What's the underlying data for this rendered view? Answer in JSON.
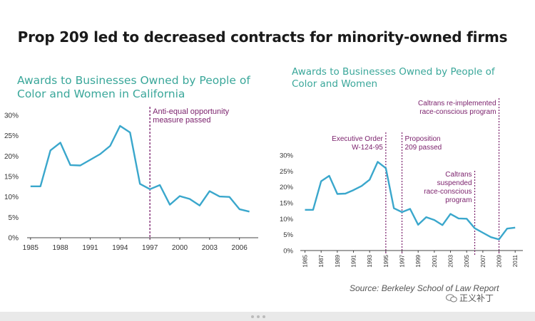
{
  "page_title": "Prop 209 led to decreased contracts for minority-owned firms",
  "colors": {
    "line": "#3aa7cc",
    "annotation": "#7a1f6b",
    "title": "#3aa79a"
  },
  "chart_data": [
    {
      "type": "line",
      "title": "Awards to Businesses Owned by People of Color and Women in California",
      "xlabel": "",
      "ylabel": "",
      "x_ticks": [
        "1985",
        "1988",
        "1991",
        "1994",
        "1997",
        "2000",
        "2003",
        "2006"
      ],
      "y_ticks": [
        "0%",
        "5%",
        "10%",
        "15%",
        "20%",
        "25%",
        "30%"
      ],
      "xlim": [
        1984.8,
        2007.6
      ],
      "ylim": [
        0,
        30
      ],
      "series": [
        {
          "x": [
            1985,
            1986,
            1987,
            1988,
            1989,
            1990,
            1991,
            1992,
            1993,
            1994,
            1995,
            1996,
            1997,
            1998,
            1999,
            2000,
            2001,
            2002,
            2003,
            2004,
            2005,
            2006,
            2007
          ],
          "values": [
            12.6,
            12.6,
            21.4,
            23.3,
            17.8,
            17.7,
            19.1,
            20.5,
            22.5,
            27.4,
            25.8,
            13.2,
            11.9,
            12.9,
            8.1,
            10.2,
            9.5,
            7.9,
            11.4,
            10.1,
            10.0,
            7.0,
            6.4
          ]
        }
      ],
      "annotations": [
        {
          "x": 1997,
          "label_lines": [
            "Anti-equal opportunity",
            "measure passed"
          ]
        }
      ],
      "grid": false,
      "legend": "none"
    },
    {
      "type": "line",
      "title": "Awards to Businesses Owned by People of Color and Women",
      "xlabel": "",
      "ylabel": "",
      "x_ticks": [
        "1985",
        "1987",
        "1989",
        "1991",
        "1993",
        "1995",
        "1997",
        "1999",
        "2001",
        "2003",
        "2005",
        "2007",
        "2009",
        "2011"
      ],
      "y_ticks": [
        "0%",
        "5%",
        "10%",
        "15%",
        "20%",
        "25%",
        "30%"
      ],
      "xlim": [
        1984.6,
        2011.6
      ],
      "ylim": [
        0,
        30
      ],
      "series": [
        {
          "x": [
            1985,
            1986,
            1987,
            1988,
            1989,
            1990,
            1991,
            1992,
            1993,
            1994,
            1995,
            1996,
            1997,
            1998,
            1999,
            2000,
            2001,
            2002,
            2003,
            2004,
            2005,
            2006,
            2007,
            2008,
            2009,
            2010,
            2011
          ],
          "values": [
            12.8,
            12.8,
            21.8,
            23.5,
            17.8,
            17.9,
            19.0,
            20.3,
            22.3,
            27.9,
            25.9,
            13.3,
            12.1,
            13.1,
            8.1,
            10.5,
            9.6,
            8.0,
            11.5,
            10.1,
            10.0,
            7.0,
            5.6,
            4.2,
            3.5,
            6.9,
            7.2
          ]
        }
      ],
      "annotations": [
        {
          "x": 1995,
          "label_lines": [
            "Executive Order",
            "W-124-95"
          ]
        },
        {
          "x": 1997,
          "label_lines": [
            "Proposition",
            "209 passed"
          ]
        },
        {
          "x": 2006,
          "label_lines": [
            "Caltrans",
            "suspended",
            "race-conscious",
            "program"
          ]
        },
        {
          "x": 2009,
          "label_lines": [
            "Caltrans re-implemented",
            "race-conscious program"
          ]
        }
      ],
      "grid": false,
      "legend": "none"
    }
  ],
  "source": "Source: Berkeley School of Law Report",
  "watermark": "正义补丁"
}
